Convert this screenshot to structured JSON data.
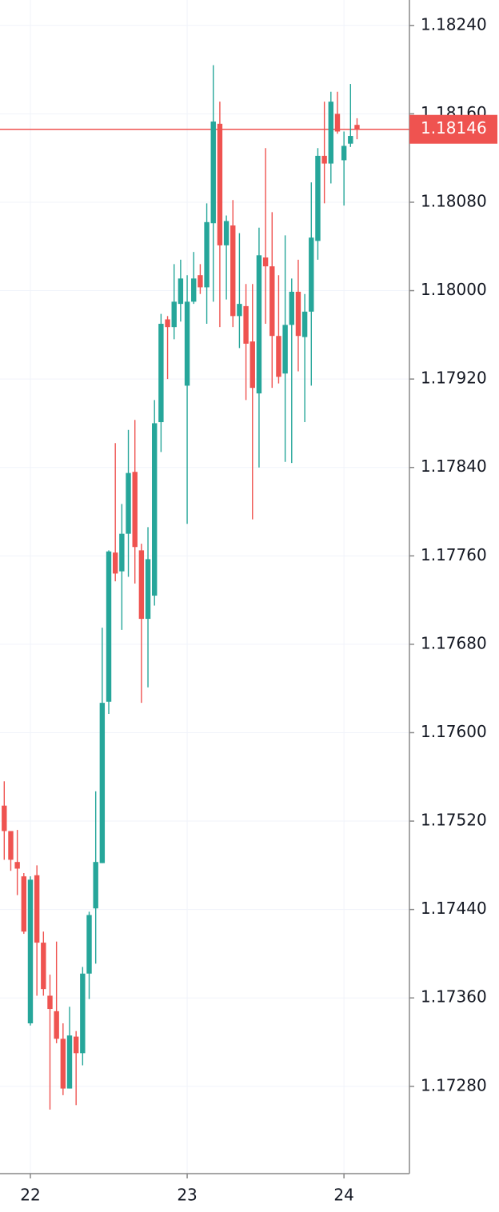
{
  "chart_data": {
    "type": "candlestick",
    "categories": [
      null,
      null,
      null,
      null,
      "22",
      null,
      null,
      null,
      null,
      null,
      null,
      null,
      null,
      null,
      null,
      null,
      null,
      null,
      null,
      null,
      null,
      null,
      null,
      null,
      null,
      null,
      null,
      null,
      "23",
      null,
      null,
      null,
      null,
      null,
      null,
      null,
      null,
      null,
      null,
      null,
      null,
      null,
      null,
      null,
      null,
      null,
      null,
      null,
      null,
      null,
      null,
      null,
      "24",
      null,
      null
    ],
    "open": [
      1.17534,
      1.17511,
      1.17483,
      1.1747,
      1.17337,
      1.17471,
      1.1741,
      1.17362,
      1.17348,
      1.17323,
      1.17278,
      1.17325,
      1.1731,
      1.17382,
      1.17441,
      1.17482,
      1.17628,
      1.17763,
      1.17746,
      1.1778,
      1.17836,
      1.17765,
      1.17703,
      1.17724,
      1.17881,
      1.17974,
      1.17967,
      1.17988,
      1.17914,
      1.1799,
      1.18014,
      1.18003,
      1.18061,
      1.18151,
      1.18041,
      1.18059,
      1.17977,
      1.17986,
      1.17954,
      1.17907,
      1.1803,
      1.18022,
      1.17959,
      1.17925,
      1.17969,
      1.17999,
      1.17958,
      1.17981,
      1.18045,
      1.18122,
      1.18115,
      1.1816,
      1.18118,
      1.18133,
      1.1815
    ],
    "high": [
      1.17556,
      1.17511,
      1.17512,
      1.17473,
      1.1747,
      1.1748,
      1.1742,
      1.17381,
      1.17411,
      1.17337,
      1.17352,
      1.1733,
      1.17388,
      1.17438,
      1.17547,
      1.17695,
      1.17765,
      1.17862,
      1.17807,
      1.17874,
      1.17883,
      1.17771,
      1.17786,
      1.17901,
      1.17979,
      1.17977,
      1.18024,
      1.18028,
      1.18014,
      1.18035,
      1.18024,
      1.18079,
      1.18204,
      1.18171,
      1.18068,
      1.18082,
      1.18052,
      1.18006,
      1.18006,
      1.18057,
      1.18129,
      1.18071,
      1.18014,
      1.1805,
      1.18011,
      1.18028,
      1.17997,
      1.18098,
      1.18129,
      1.18171,
      1.1818,
      1.1818,
      1.18144,
      1.18187,
      1.18156
    ],
    "low": [
      1.17485,
      1.17475,
      1.17453,
      1.17418,
      1.17335,
      1.17362,
      1.17362,
      1.17259,
      1.17319,
      1.17272,
      1.17278,
      1.17263,
      1.17299,
      1.17359,
      1.17391,
      1.17482,
      1.17617,
      1.17737,
      1.17693,
      1.17741,
      1.17735,
      1.17627,
      1.17641,
      1.17715,
      1.17854,
      1.1792,
      1.17956,
      1.17972,
      1.17789,
      1.17988,
      1.17997,
      1.1797,
      1.1799,
      1.17967,
      1.17992,
      1.17967,
      1.17948,
      1.17901,
      1.17793,
      1.1784,
      1.1797,
      1.17912,
      1.17916,
      1.17845,
      1.17844,
      1.17927,
      1.17881,
      1.17914,
      1.18028,
      1.18079,
      1.18097,
      1.18142,
      1.18077,
      1.1813,
      1.18137
    ],
    "close": [
      1.17511,
      1.17485,
      1.17477,
      1.1742,
      1.17467,
      1.1741,
      1.17368,
      1.1735,
      1.17323,
      1.17278,
      1.17326,
      1.1731,
      1.17382,
      1.17435,
      1.17483,
      1.17627,
      1.17764,
      1.17744,
      1.1778,
      1.17835,
      1.17768,
      1.17703,
      1.17757,
      1.1788,
      1.1797,
      1.17967,
      1.1799,
      1.18011,
      1.1799,
      1.18011,
      1.18003,
      1.18062,
      1.18153,
      1.18041,
      1.18063,
      1.17977,
      1.17988,
      1.17952,
      1.17912,
      1.18032,
      1.18022,
      1.17959,
      1.17922,
      1.17969,
      1.17999,
      1.17959,
      1.17981,
      1.18048,
      1.18122,
      1.18115,
      1.18171,
      1.18144,
      1.18131,
      1.1814,
      1.18146
    ],
    "up_color": "#26a69a",
    "down_color": "#ef5350",
    "last_price": 1.18146,
    "last_price_color": "#ef5350",
    "ylim": [
      1.17201,
      1.18263
    ],
    "yticks": [
      {
        "value": 1.1824,
        "label": "1.18240"
      },
      {
        "value": 1.1816,
        "label": "1.18160"
      },
      {
        "value": 1.1808,
        "label": "1.18080"
      },
      {
        "value": 1.18,
        "label": "1.18000"
      },
      {
        "value": 1.1792,
        "label": "1.17920"
      },
      {
        "value": 1.1784,
        "label": "1.17840"
      },
      {
        "value": 1.1776,
        "label": "1.17760"
      },
      {
        "value": 1.1768,
        "label": "1.17680"
      },
      {
        "value": 1.176,
        "label": "1.17600"
      },
      {
        "value": 1.1752,
        "label": "1.17520"
      },
      {
        "value": 1.1744,
        "label": "1.17440"
      },
      {
        "value": 1.1736,
        "label": "1.17360"
      },
      {
        "value": 1.1728,
        "label": "1.17280"
      }
    ],
    "grid": true
  }
}
